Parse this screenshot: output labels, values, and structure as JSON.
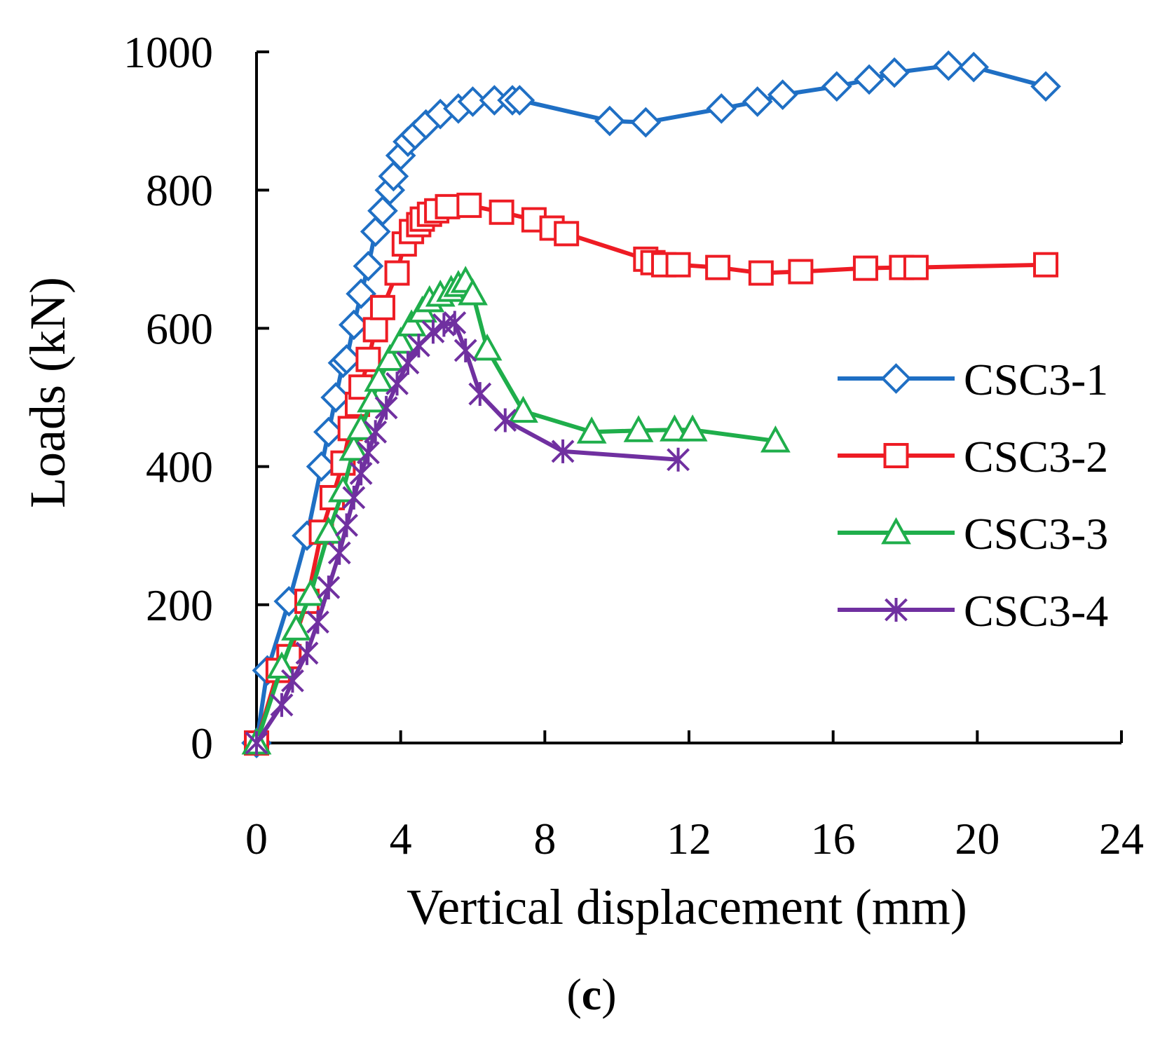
{
  "chart_data": {
    "type": "line",
    "title": "",
    "xlabel": "Vertical displacement (mm)",
    "ylabel": "Loads (kN)",
    "panel_label_open": "(",
    "panel_label_letter": "c",
    "panel_label_close": ")",
    "xlim": [
      0,
      24
    ],
    "ylim": [
      0,
      1000
    ],
    "xticks": [
      0,
      4,
      8,
      12,
      16,
      20,
      24
    ],
    "yticks": [
      0,
      200,
      400,
      600,
      800,
      1000
    ],
    "grid": false,
    "legend_position": "right",
    "series": [
      {
        "name": "CSC3-1",
        "color": "#1f6fc4",
        "marker": "diamond",
        "points": [
          [
            0,
            0
          ],
          [
            0.3,
            105
          ],
          [
            0.9,
            205
          ],
          [
            1.4,
            300
          ],
          [
            1.8,
            400
          ],
          [
            2.0,
            450
          ],
          [
            2.2,
            500
          ],
          [
            2.4,
            550
          ],
          [
            2.5,
            555
          ],
          [
            2.7,
            605
          ],
          [
            2.9,
            650
          ],
          [
            3.1,
            690
          ],
          [
            3.3,
            740
          ],
          [
            3.5,
            770
          ],
          [
            3.7,
            800
          ],
          [
            3.8,
            820
          ],
          [
            4.0,
            850
          ],
          [
            4.2,
            870
          ],
          [
            4.4,
            880
          ],
          [
            4.7,
            895
          ],
          [
            5.1,
            910
          ],
          [
            5.6,
            918
          ],
          [
            6.0,
            928
          ],
          [
            6.6,
            930
          ],
          [
            7.1,
            930
          ],
          [
            7.3,
            930
          ],
          [
            9.8,
            900
          ],
          [
            10.8,
            898
          ],
          [
            12.9,
            918
          ],
          [
            13.9,
            928
          ],
          [
            14.6,
            938
          ],
          [
            16.1,
            950
          ],
          [
            17.0,
            960
          ],
          [
            17.7,
            970
          ],
          [
            19.2,
            980
          ],
          [
            19.9,
            978
          ],
          [
            21.9,
            950
          ]
        ]
      },
      {
        "name": "CSC3-2",
        "color": "#ee1c24",
        "marker": "square",
        "points": [
          [
            0,
            0
          ],
          [
            0.6,
            105
          ],
          [
            0.9,
            125
          ],
          [
            1.4,
            205
          ],
          [
            1.8,
            305
          ],
          [
            2.1,
            355
          ],
          [
            2.4,
            405
          ],
          [
            2.6,
            455
          ],
          [
            2.8,
            490
          ],
          [
            2.9,
            515
          ],
          [
            3.1,
            555
          ],
          [
            3.3,
            598
          ],
          [
            3.5,
            630
          ],
          [
            3.9,
            680
          ],
          [
            4.1,
            722
          ],
          [
            4.3,
            740
          ],
          [
            4.5,
            750
          ],
          [
            4.6,
            758
          ],
          [
            4.8,
            765
          ],
          [
            5.0,
            770
          ],
          [
            5.3,
            776
          ],
          [
            5.9,
            778
          ],
          [
            6.8,
            768
          ],
          [
            7.7,
            757
          ],
          [
            8.2,
            745
          ],
          [
            8.6,
            737
          ],
          [
            10.8,
            700
          ],
          [
            11.0,
            695
          ],
          [
            11.3,
            692
          ],
          [
            11.7,
            692
          ],
          [
            12.8,
            688
          ],
          [
            14.0,
            680
          ],
          [
            15.1,
            682
          ],
          [
            16.9,
            687
          ],
          [
            17.9,
            688
          ],
          [
            18.3,
            688
          ],
          [
            21.9,
            692
          ]
        ]
      },
      {
        "name": "CSC3-3",
        "color": "#1fae4b",
        "marker": "triangle",
        "points": [
          [
            0,
            0
          ],
          [
            0.7,
            110
          ],
          [
            1.1,
            165
          ],
          [
            1.5,
            215
          ],
          [
            2.0,
            305
          ],
          [
            2.4,
            365
          ],
          [
            2.7,
            425
          ],
          [
            2.9,
            455
          ],
          [
            3.2,
            495
          ],
          [
            3.4,
            525
          ],
          [
            3.7,
            555
          ],
          [
            4.0,
            580
          ],
          [
            4.3,
            605
          ],
          [
            4.6,
            625
          ],
          [
            4.8,
            640
          ],
          [
            5.1,
            648
          ],
          [
            5.4,
            655
          ],
          [
            5.6,
            662
          ],
          [
            5.8,
            668
          ],
          [
            6.0,
            650
          ],
          [
            6.4,
            570
          ],
          [
            7.4,
            480
          ],
          [
            9.3,
            450
          ],
          [
            10.6,
            452
          ],
          [
            11.6,
            453
          ],
          [
            12.1,
            453
          ],
          [
            14.4,
            437
          ]
        ]
      },
      {
        "name": "CSC3-4",
        "color": "#7030a0",
        "marker": "asterisk",
        "points": [
          [
            0,
            0
          ],
          [
            0.7,
            55
          ],
          [
            1.0,
            90
          ],
          [
            1.4,
            130
          ],
          [
            1.7,
            175
          ],
          [
            2.0,
            225
          ],
          [
            2.3,
            275
          ],
          [
            2.5,
            315
          ],
          [
            2.7,
            355
          ],
          [
            2.9,
            390
          ],
          [
            3.1,
            420
          ],
          [
            3.3,
            450
          ],
          [
            3.6,
            485
          ],
          [
            3.9,
            520
          ],
          [
            4.2,
            550
          ],
          [
            4.5,
            575
          ],
          [
            4.9,
            595
          ],
          [
            5.2,
            605
          ],
          [
            5.5,
            608
          ],
          [
            5.8,
            568
          ],
          [
            6.2,
            505
          ],
          [
            6.9,
            467
          ],
          [
            8.5,
            422
          ],
          [
            11.7,
            410
          ]
        ]
      }
    ]
  }
}
